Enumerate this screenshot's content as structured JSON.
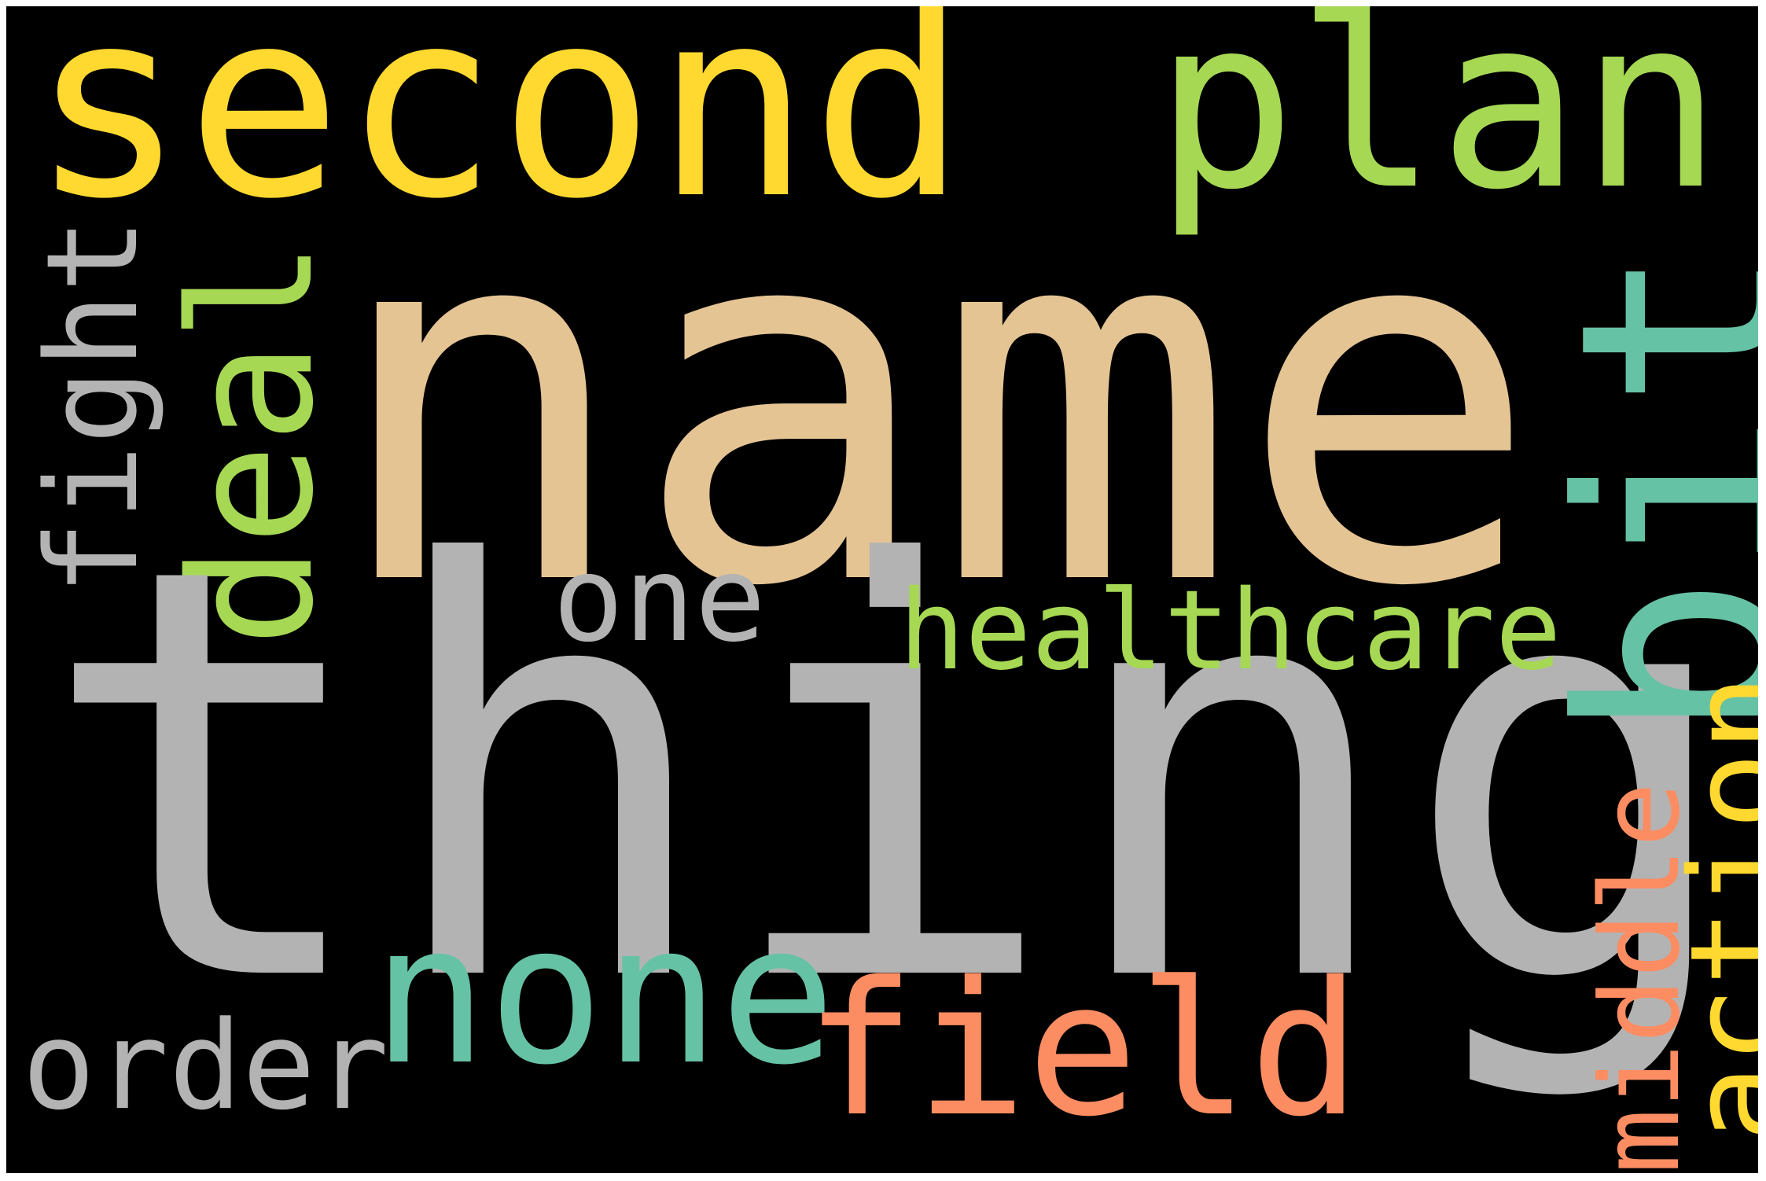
{
  "words": {
    "thing": {
      "text": "thing",
      "color": "#b3b3b3"
    },
    "name": {
      "text": "name",
      "color": "#e5c494"
    },
    "second": {
      "text": "second",
      "color": "#ffd92f"
    },
    "plan": {
      "text": "plan",
      "color": "#a6d854"
    },
    "bit": {
      "text": "bit",
      "color": "#66c2a5"
    },
    "deal": {
      "text": "deal",
      "color": "#a6d854"
    },
    "fight": {
      "text": "fight",
      "color": "#b3b3b3"
    },
    "one": {
      "text": "one",
      "color": "#b3b3b3"
    },
    "healthcare": {
      "text": "healthcare",
      "color": "#a6d854"
    },
    "none": {
      "text": "none",
      "color": "#66c2a5"
    },
    "field": {
      "text": "field",
      "color": "#fc8d62"
    },
    "order": {
      "text": "order",
      "color": "#b3b3b3"
    },
    "middle": {
      "text": "middle",
      "color": "#fc8d62"
    },
    "action": {
      "text": "action",
      "color": "#ffd92f"
    }
  },
  "background_color": "#000000"
}
